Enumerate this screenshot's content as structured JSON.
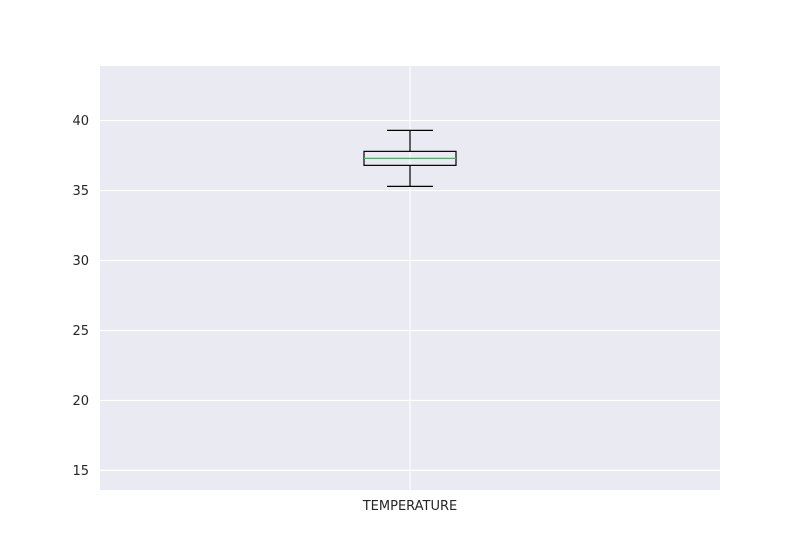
{
  "chart_data": {
    "type": "box",
    "title": "",
    "xlabel": "",
    "ylabel": "",
    "categories": [
      "TEMPERATURE"
    ],
    "boxes": [
      {
        "name": "TEMPERATURE",
        "whisker_low": 35.3,
        "q1": 36.8,
        "median": 37.3,
        "q3": 37.8,
        "whisker_high": 39.3
      }
    ],
    "ylim": [
      13.6,
      43.9
    ],
    "y_ticks": [
      15,
      20,
      25,
      30,
      35,
      40
    ],
    "grid": true,
    "legend": "none"
  },
  "colors": {
    "plot_background": "#eaeaf2",
    "grid": "#ffffff",
    "box": "#000000",
    "median": "#55a868",
    "text": "#262626"
  }
}
